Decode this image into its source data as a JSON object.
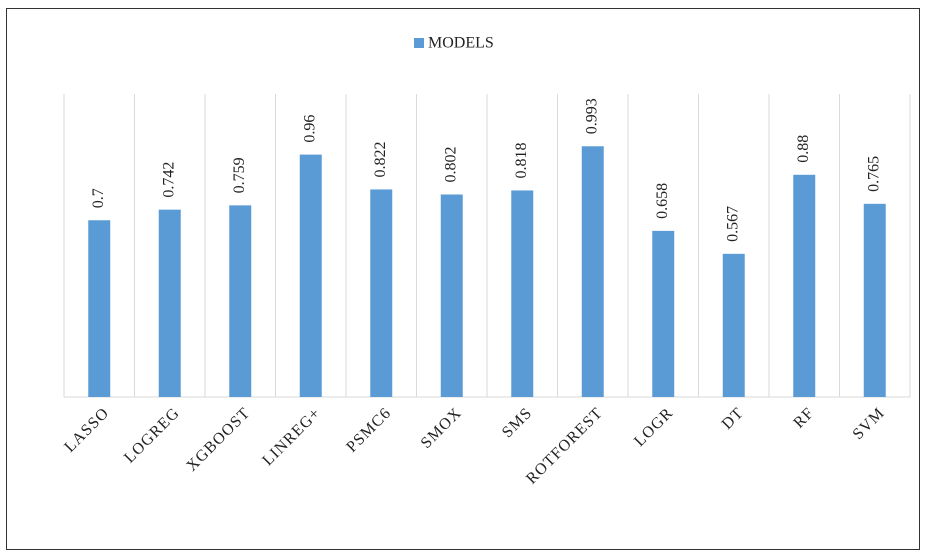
{
  "chart_data": {
    "type": "bar",
    "legend": "MODELS",
    "categories": [
      "LASSO",
      "LOGREG",
      "XGBOOST",
      "LINREG+",
      "PSMC6",
      "SMOX",
      "SMS",
      "ROTFOREST",
      "LOGR",
      "DT",
      "RF",
      "SVM"
    ],
    "values": [
      0.7,
      0.742,
      0.759,
      0.96,
      0.822,
      0.802,
      0.818,
      0.993,
      0.658,
      0.567,
      0.88,
      0.765
    ],
    "color": "#5b9bd5",
    "ylim": [
      0,
      1.2
    ]
  }
}
